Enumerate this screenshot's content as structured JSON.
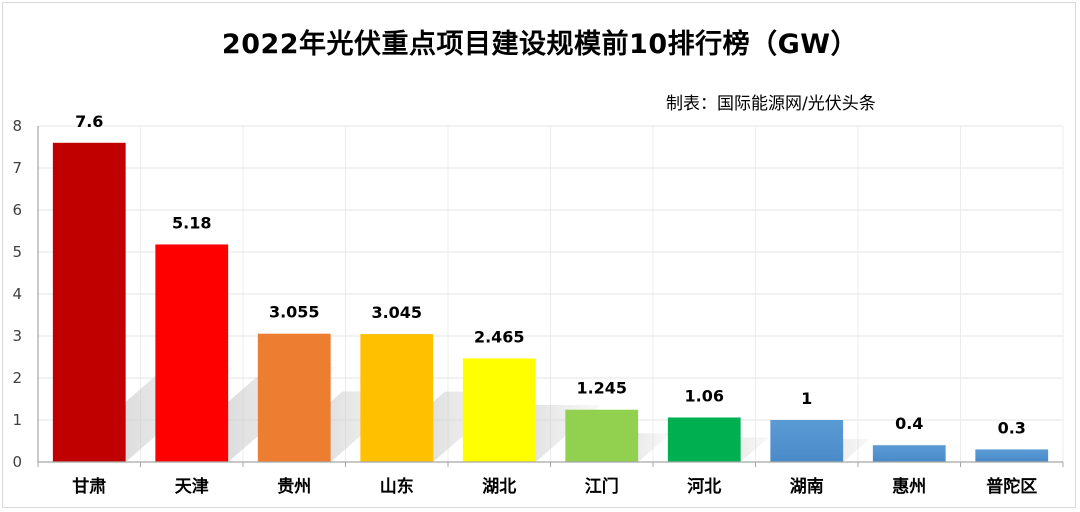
{
  "chart_data": {
    "type": "bar",
    "title": "2022年光伏重点项目建设规模前10排行榜（GW）",
    "source": "制表：国际能源网/光伏头条",
    "categories": [
      "甘肃",
      "天津",
      "贵州",
      "山东",
      "湖北",
      "江门",
      "河北",
      "湖南",
      "惠州",
      "普陀区"
    ],
    "values": [
      7.6,
      5.18,
      3.055,
      3.045,
      2.465,
      1.245,
      1.06,
      1,
      0.4,
      0.3
    ],
    "value_labels": [
      "7.6",
      "5.18",
      "3.055",
      "3.045",
      "2.465",
      "1.245",
      "1.06",
      "1",
      "0.4",
      "0.3"
    ],
    "colors": [
      "#c00000",
      "#ff0000",
      "#ed7d31",
      "#ffc000",
      "#ffff00",
      "#92d050",
      "#00b050",
      "#5b9bd5",
      "#5b9bd5",
      "#5b9bd5"
    ],
    "ylim": [
      0,
      8
    ],
    "yticks": [
      "0",
      "1",
      "2",
      "3",
      "4",
      "5",
      "6",
      "7",
      "8"
    ],
    "xlabel": "",
    "ylabel": "",
    "grid": true,
    "legend": "none"
  }
}
